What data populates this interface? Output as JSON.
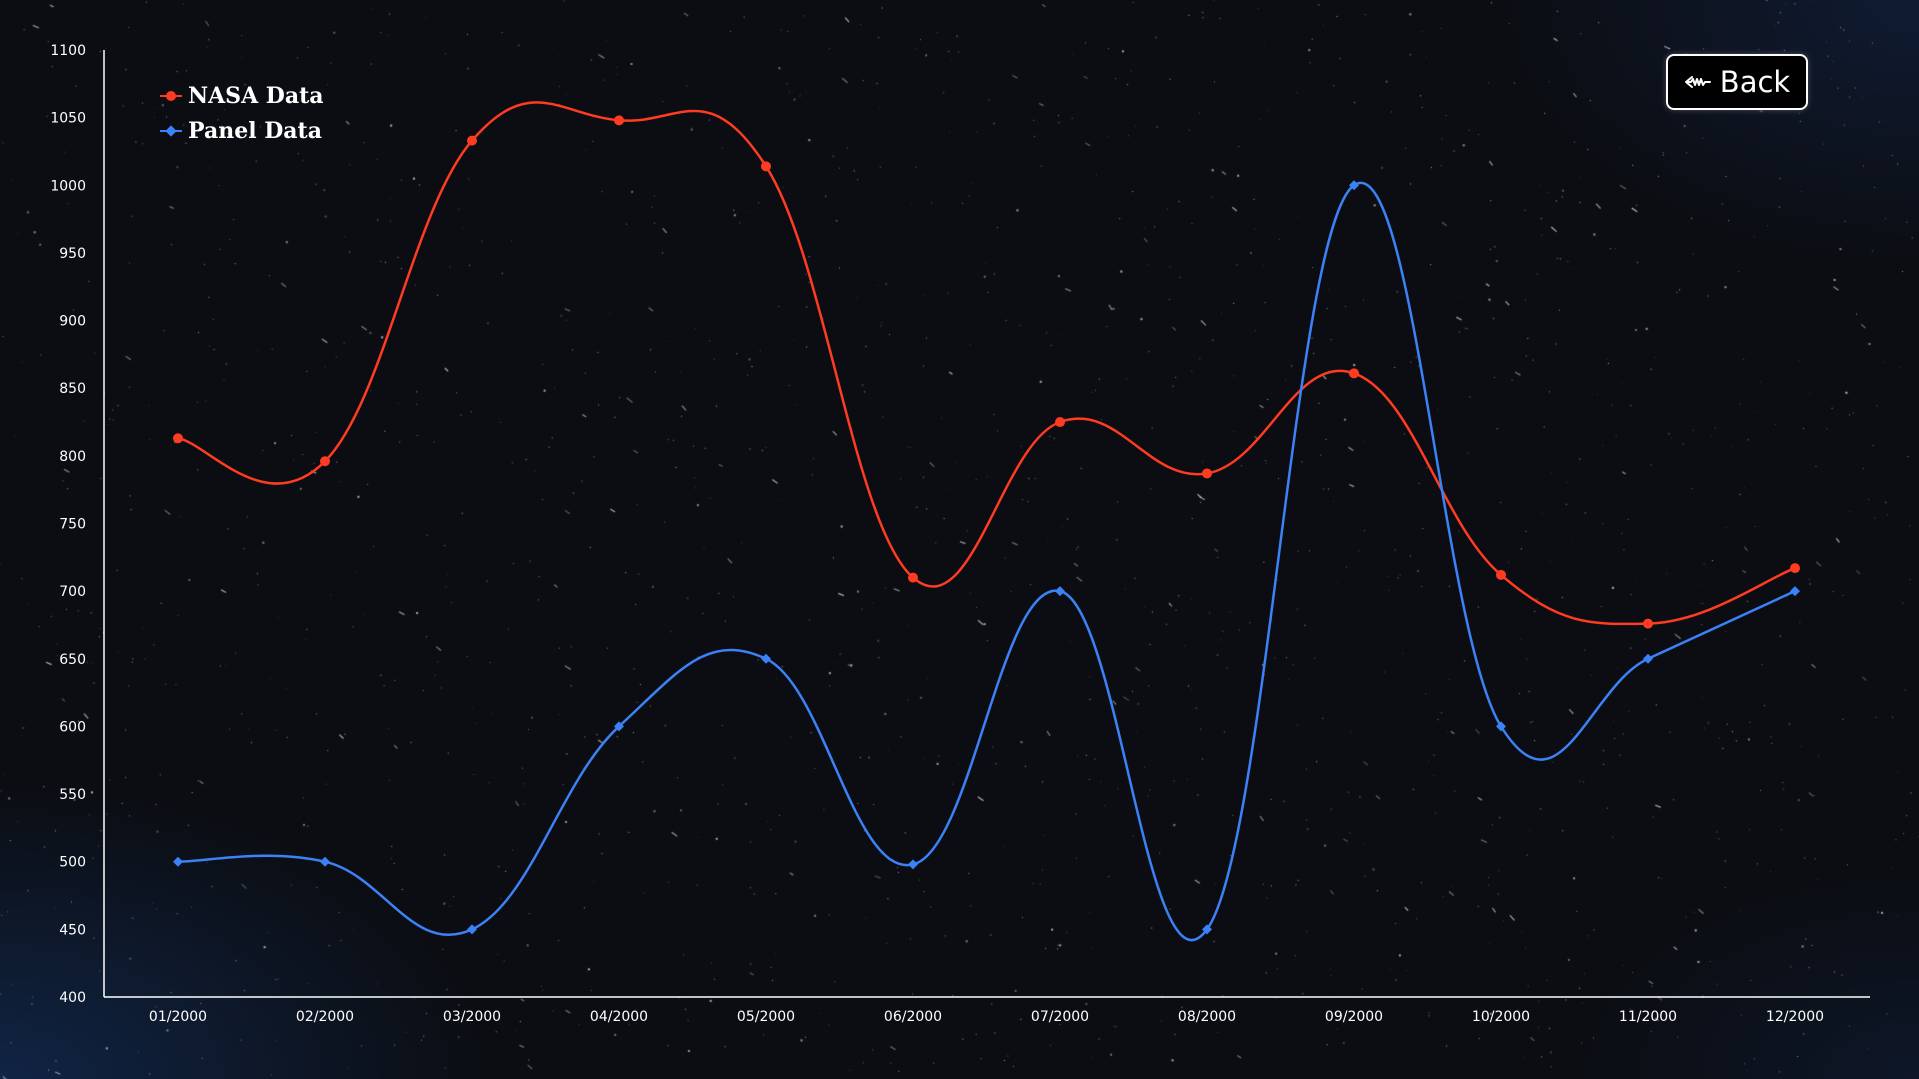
{
  "back_button": {
    "label": "Back",
    "icon": "back-arrow-icon"
  },
  "colors": {
    "nasa": "#ff3b22",
    "panel": "#3b82f6",
    "axis": "#ffffff",
    "button_border": "#ffffff"
  },
  "chart_data": {
    "type": "line",
    "title": "",
    "xlabel": "",
    "ylabel": "",
    "categories": [
      "01/2000",
      "02/2000",
      "03/2000",
      "04/2000",
      "05/2000",
      "06/2000",
      "07/2000",
      "08/2000",
      "09/2000",
      "10/2000",
      "11/2000",
      "12/2000"
    ],
    "ylim": [
      400,
      1100
    ],
    "yticks": [
      400,
      450,
      500,
      550,
      600,
      650,
      700,
      750,
      800,
      850,
      900,
      950,
      1000,
      1050,
      1100
    ],
    "grid": false,
    "legend_position": "top-left",
    "series": [
      {
        "name": "NASA Data",
        "marker": "circle",
        "values": [
          813,
          796,
          1033,
          1048,
          1014,
          710,
          825,
          787,
          861,
          712,
          676,
          717
        ]
      },
      {
        "name": "Panel Data",
        "marker": "diamond",
        "values": [
          500,
          500,
          450,
          600,
          650,
          498,
          700,
          450,
          1000,
          600,
          650,
          700
        ]
      }
    ]
  }
}
